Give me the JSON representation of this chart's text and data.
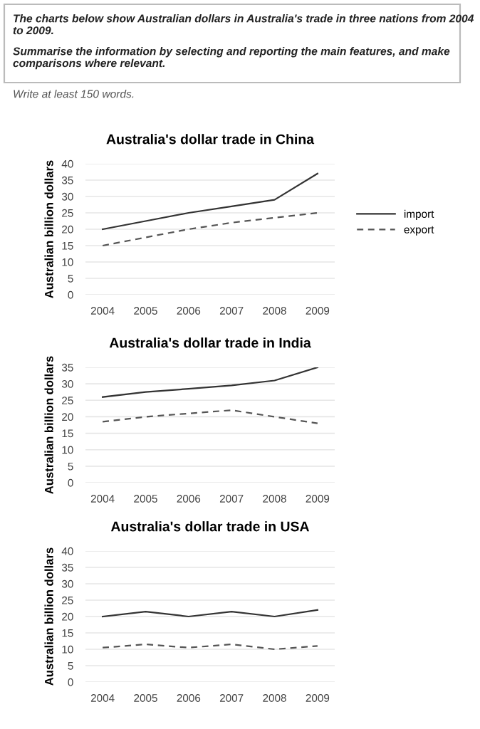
{
  "chart_data": [
    {
      "type": "other",
      "annotations": [
        "The charts below show Australian dollars in Australia's trade in three nations from 2004 to 2009.",
        "Summarise the information by selecting and reporting the main features, and make comparisons where relevant.",
        "Write at least 150 words."
      ]
    },
    {
      "type": "line",
      "title": "Australia's dollar trade in China",
      "ylabel": "Australian billion dollars",
      "categories": [
        "2004",
        "2005",
        "2006",
        "2007",
        "2008",
        "2009"
      ],
      "ylim": [
        0,
        40
      ],
      "yticks": [
        0,
        5,
        10,
        15,
        20,
        25,
        30,
        35,
        40
      ],
      "grid": "y",
      "legend": "right",
      "series": [
        {
          "name": "import",
          "color": "#333333",
          "line_style": "solid",
          "values": [
            20,
            22.5,
            25,
            27,
            29,
            37
          ]
        },
        {
          "name": "export",
          "color": "#555555",
          "line_style": "dashed",
          "values": [
            15,
            17.5,
            20,
            22,
            23.5,
            25
          ]
        }
      ]
    },
    {
      "type": "line",
      "title": "Australia's dollar trade in India",
      "ylabel": "Australian billion dollars",
      "categories": [
        "2004",
        "2005",
        "2006",
        "2007",
        "2008",
        "2009"
      ],
      "ylim": [
        0,
        35
      ],
      "yticks": [
        0,
        5,
        10,
        15,
        20,
        25,
        30,
        35
      ],
      "grid": "y",
      "series": [
        {
          "color": "#333333",
          "line_style": "solid",
          "values": [
            26,
            27.5,
            28.5,
            29.5,
            31,
            35
          ]
        },
        {
          "color": "#555555",
          "line_style": "dashed",
          "values": [
            18.5,
            20,
            21,
            22,
            20,
            18
          ]
        }
      ]
    },
    {
      "type": "line",
      "title": "Australia's dollar trade in USA",
      "ylabel": "Australian billion dollars",
      "categories": [
        "2004",
        "2005",
        "2006",
        "2007",
        "2008",
        "2009"
      ],
      "ylim": [
        0,
        40
      ],
      "yticks": [
        0,
        5,
        10,
        15,
        20,
        25,
        30,
        35,
        40
      ],
      "grid": "y",
      "series": [
        {
          "color": "#333333",
          "line_style": "solid",
          "values": [
            20,
            21.5,
            20,
            21.5,
            20,
            22
          ]
        },
        {
          "color": "#555555",
          "line_style": "dashed",
          "values": [
            10.5,
            11.5,
            10.5,
            11.5,
            10,
            11
          ]
        }
      ]
    }
  ]
}
